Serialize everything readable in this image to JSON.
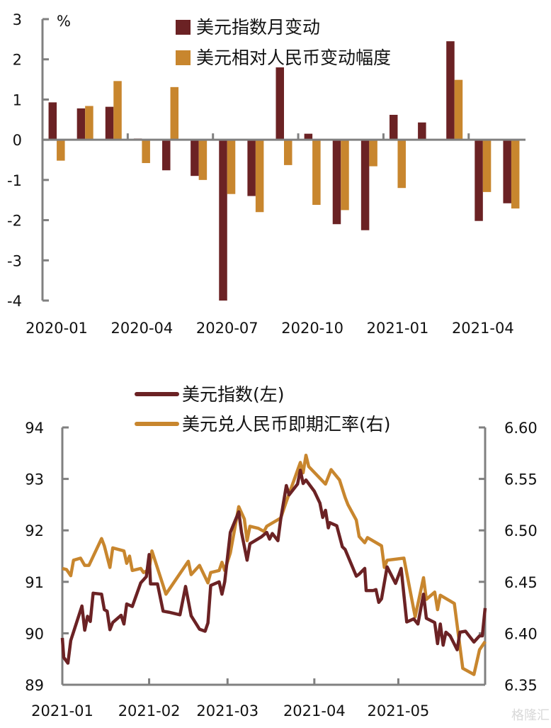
{
  "colors": {
    "dxy": "#6b2224",
    "cny": "#c8862e",
    "axis": "#808080"
  },
  "watermark": "格隆汇",
  "chart_data": [
    {
      "type": "bar",
      "title": "",
      "unit_label": "%",
      "ylim": [
        -4,
        3
      ],
      "yticks": [
        "3",
        "2",
        "1",
        "0",
        "-1",
        "-2",
        "-3",
        "-4"
      ],
      "categories": [
        "2020-01",
        "2020-02",
        "2020-03",
        "2020-04",
        "2020-05",
        "2020-06",
        "2020-07",
        "2020-08",
        "2020-09",
        "2020-10",
        "2020-11",
        "2020-12",
        "2021-01",
        "2021-02",
        "2021-03",
        "2021-04",
        "2021-05"
      ],
      "xtick_labels": [
        "2020-01",
        "2020-04",
        "2020-07",
        "2020-10",
        "2021-01",
        "2021-04"
      ],
      "legend_position": "top-right",
      "series": [
        {
          "name": "美元指数月变动",
          "values": [
            0.93,
            0.78,
            0.82,
            0.03,
            -0.76,
            -0.9,
            -4.0,
            -1.4,
            1.8,
            0.15,
            -2.1,
            -2.25,
            0.62,
            0.43,
            2.45,
            -2.02,
            -1.58
          ]
        },
        {
          "name": "美元相对人民币变动幅度",
          "values": [
            -0.52,
            0.84,
            1.46,
            -0.58,
            1.31,
            -1.0,
            -1.35,
            -1.8,
            -0.63,
            -1.62,
            -1.75,
            -0.66,
            -1.2,
            -0.02,
            1.49,
            -1.3,
            -1.71
          ]
        }
      ]
    },
    {
      "type": "line",
      "xlim_days": [
        0,
        151
      ],
      "x_unit": "days since 2021-01-01",
      "xtick_labels": [
        {
          "label": "2021-01",
          "day": 0
        },
        {
          "label": "2021-02",
          "day": 31
        },
        {
          "label": "2021-03",
          "day": 59
        },
        {
          "label": "2021-04",
          "day": 90
        },
        {
          "label": "2021-05",
          "day": 120
        }
      ],
      "ylim_left": [
        89,
        94
      ],
      "yticks_left": [
        "94",
        "93",
        "92",
        "91",
        "90",
        "89"
      ],
      "ylim_right": [
        6.35,
        6.6
      ],
      "yticks_right": [
        "6.60",
        "6.55",
        "6.50",
        "6.45",
        "6.40",
        "6.35"
      ],
      "legend_position": "top",
      "series": [
        {
          "name": "美元指数(左)",
          "axis": "left",
          "x": [
            0,
            0.5,
            2,
            3,
            7,
            8,
            9,
            10,
            11,
            14,
            15,
            16,
            17,
            18,
            21,
            22,
            23,
            25,
            28,
            30,
            31,
            31.5,
            34,
            36,
            38,
            42,
            44,
            46,
            49,
            51,
            52,
            53,
            56,
            57,
            58,
            60,
            63,
            64,
            66,
            67,
            71,
            73,
            74,
            75,
            77,
            78,
            80,
            81,
            84,
            85,
            86,
            87,
            90,
            92,
            93,
            94,
            95,
            95.5,
            98,
            100,
            101,
            105,
            106,
            108,
            108.5,
            111,
            112,
            113,
            114,
            116,
            119,
            121,
            123,
            125.5,
            127,
            129,
            130,
            133,
            134,
            135,
            136,
            137,
            138.5,
            141,
            142,
            144,
            147,
            149,
            150,
            151
          ],
          "y": [
            89.91,
            89.53,
            89.42,
            89.86,
            90.53,
            90.06,
            90.33,
            90.23,
            90.78,
            90.76,
            90.46,
            90.43,
            90.07,
            90.21,
            90.35,
            90.18,
            90.57,
            90.52,
            90.98,
            91.1,
            91.53,
            90.96,
            90.96,
            90.43,
            90.41,
            90.36,
            90.91,
            90.34,
            90.08,
            90.04,
            90.2,
            90.93,
            91.0,
            90.76,
            91.0,
            91.96,
            92.36,
            91.96,
            91.42,
            91.74,
            91.87,
            91.96,
            91.83,
            91.94,
            91.8,
            92.22,
            92.87,
            92.69,
            92.9,
            93.17,
            92.91,
            92.98,
            92.76,
            92.53,
            92.25,
            92.39,
            92.05,
            92.15,
            92.09,
            91.68,
            91.63,
            91.11,
            91.15,
            91.26,
            90.83,
            90.83,
            90.85,
            90.6,
            90.67,
            91.29,
            90.97,
            91.26,
            90.22,
            90.28,
            90.18,
            90.76,
            90.29,
            90.21,
            89.8,
            90.18,
            89.77,
            90.02,
            89.95,
            89.68,
            90.02,
            90.04,
            89.83,
            89.95,
            89.95,
            90.49
          ]
        },
        {
          "name": "美元兑人民币即期汇率(右)",
          "axis": "right",
          "x": [
            0,
            1.5,
            3,
            4,
            6.5,
            8,
            9.5,
            14,
            15,
            17,
            18,
            22,
            23,
            24,
            25,
            28,
            29,
            31,
            32,
            37,
            45,
            46,
            49,
            52,
            53,
            56,
            57,
            58,
            60,
            63,
            65,
            66,
            67,
            70,
            72,
            73,
            78,
            80,
            85,
            86,
            87,
            88,
            94,
            96,
            99,
            101,
            102,
            105,
            106,
            108,
            109,
            114,
            115,
            116,
            122,
            126,
            129,
            130,
            133,
            134,
            135,
            140,
            143,
            147,
            149,
            151
          ],
          "y": [
            6.463,
            6.462,
            6.456,
            6.471,
            6.473,
            6.466,
            6.466,
            6.492,
            6.485,
            6.464,
            6.483,
            6.48,
            6.468,
            6.475,
            6.461,
            6.463,
            6.459,
            6.462,
            6.48,
            6.438,
            6.47,
            6.457,
            6.466,
            6.449,
            6.459,
            6.461,
            6.469,
            6.461,
            6.478,
            6.523,
            6.511,
            6.49,
            6.504,
            6.502,
            6.499,
            6.504,
            6.512,
            6.528,
            6.566,
            6.556,
            6.573,
            6.562,
            6.545,
            6.559,
            6.549,
            6.532,
            6.525,
            6.51,
            6.494,
            6.488,
            6.493,
            6.485,
            6.464,
            6.471,
            6.473,
            6.416,
            6.454,
            6.433,
            6.44,
            6.423,
            6.437,
            6.429,
            6.366,
            6.36,
            6.384,
            6.392
          ]
        }
      ]
    }
  ]
}
